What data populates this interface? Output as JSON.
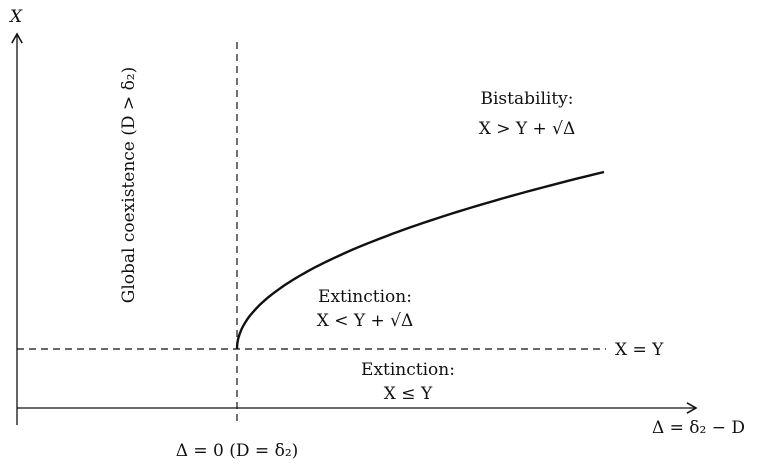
{
  "axes": {
    "y_label": "X",
    "x_label": "Δ = δ₂ − D",
    "threshold_label": "Δ = 0 (D = δ₂)"
  },
  "regions": {
    "coexistence": "Global coexistence (D > δ₂)",
    "bistability": {
      "title": "Bistability:",
      "condition": "X > Y + √Δ"
    },
    "extinction_upper": {
      "title": "Extinction:",
      "condition": "X < Y + √Δ"
    },
    "extinction_lower": {
      "title": "Extinction:",
      "condition": "X ≤ Y"
    }
  },
  "line_label": "X = Y"
}
